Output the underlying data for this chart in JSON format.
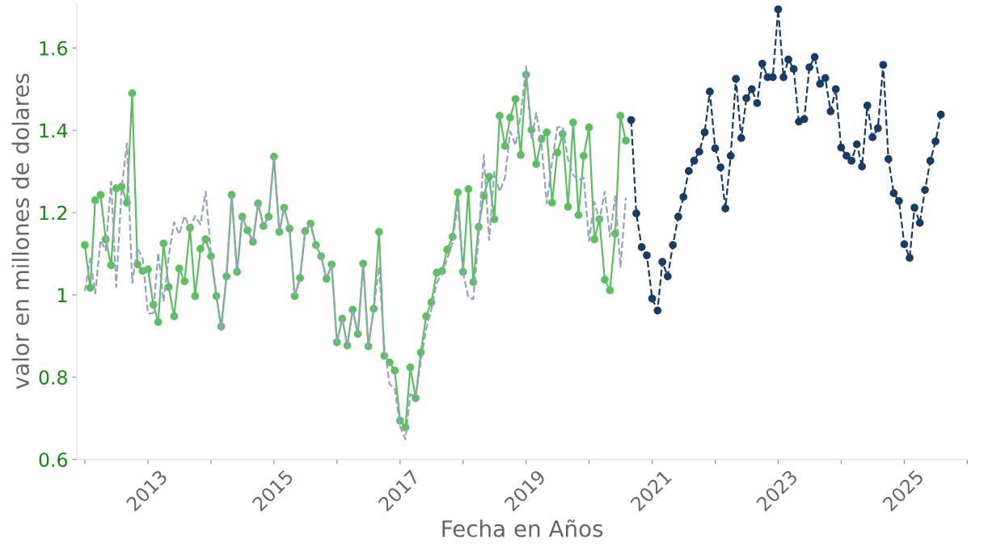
{
  "chart_data": {
    "type": "line",
    "xlabel": "Fecha en Años",
    "ylabel": "valor en millones de dolares",
    "xlim": [
      "2011-11-15",
      "2026-01-01"
    ],
    "xticks": [
      {
        "value": "2012-01-01",
        "label": null
      },
      {
        "value": "2013-01-01",
        "label": "2013"
      },
      {
        "value": "2014-01-01",
        "label": null
      },
      {
        "value": "2015-01-01",
        "label": "2015"
      },
      {
        "value": "2016-01-01",
        "label": null
      },
      {
        "value": "2017-01-01",
        "label": "2017"
      },
      {
        "value": "2018-01-01",
        "label": null
      },
      {
        "value": "2019-01-01",
        "label": "2019"
      },
      {
        "value": "2020-01-01",
        "label": null
      },
      {
        "value": "2021-01-01",
        "label": "2021"
      },
      {
        "value": "2022-01-01",
        "label": null
      },
      {
        "value": "2023-01-01",
        "label": "2023"
      },
      {
        "value": "2024-01-01",
        "label": null
      },
      {
        "value": "2025-01-01",
        "label": "2025"
      },
      {
        "value": "2026-01-01",
        "label": null
      }
    ],
    "ylim": [
      0.6,
      1.71
    ],
    "yticks": [
      0.6,
      0.8,
      1,
      1.2,
      1.4,
      1.6
    ],
    "series": [
      {
        "color": "#5cbf60",
        "marker": "circle",
        "line_style": "solid",
        "x": [
          "2012-01",
          "2012-02",
          "2012-03",
          "2012-04",
          "2012-05",
          "2012-06",
          "2012-07",
          "2012-08",
          "2012-09",
          "2012-10",
          "2012-11",
          "2012-12",
          "2013-01",
          "2013-02",
          "2013-03",
          "2013-04",
          "2013-05",
          "2013-06",
          "2013-07",
          "2013-08",
          "2013-09",
          "2013-10",
          "2013-11",
          "2013-12",
          "2014-01",
          "2014-02",
          "2014-03",
          "2014-04",
          "2014-05",
          "2014-06",
          "2014-07",
          "2014-08",
          "2014-09",
          "2014-10",
          "2014-11",
          "2014-12",
          "2015-01",
          "2015-02",
          "2015-03",
          "2015-04",
          "2015-05",
          "2015-06",
          "2015-07",
          "2015-08",
          "2015-09",
          "2015-10",
          "2015-11",
          "2015-12",
          "2016-01",
          "2016-02",
          "2016-03",
          "2016-04",
          "2016-05",
          "2016-06",
          "2016-07",
          "2016-08",
          "2016-09",
          "2016-10",
          "2016-11",
          "2016-12",
          "2017-01",
          "2017-02",
          "2017-03",
          "2017-04",
          "2017-05",
          "2017-06",
          "2017-07",
          "2017-08",
          "2017-09",
          "2017-10",
          "2017-11",
          "2017-12",
          "2018-01",
          "2018-02",
          "2018-03",
          "2018-04",
          "2018-05",
          "2018-06",
          "2018-07",
          "2018-08",
          "2018-09",
          "2018-10",
          "2018-11",
          "2018-12",
          "2019-01",
          "2019-02",
          "2019-03",
          "2019-04",
          "2019-05",
          "2019-06",
          "2019-07",
          "2019-08",
          "2019-09",
          "2019-10",
          "2019-11",
          "2019-12",
          "2020-01",
          "2020-02",
          "2020-03",
          "2020-04",
          "2020-05",
          "2020-06",
          "2020-07",
          "2020-08"
        ],
        "values": [
          1.121,
          1.017,
          1.23,
          1.243,
          1.135,
          1.072,
          1.259,
          1.263,
          1.224,
          1.49,
          1.074,
          1.058,
          1.062,
          0.976,
          0.934,
          1.125,
          1.019,
          0.948,
          1.064,
          1.033,
          1.163,
          0.997,
          1.112,
          1.135,
          1.094,
          0.997,
          0.923,
          1.045,
          1.243,
          1.056,
          1.19,
          1.157,
          1.129,
          1.222,
          1.167,
          1.19,
          1.336,
          1.153,
          1.212,
          1.161,
          0.997,
          1.041,
          1.155,
          1.173,
          1.121,
          1.094,
          1.039,
          1.074,
          0.885,
          0.942,
          0.877,
          0.964,
          0.905,
          1.076,
          0.875,
          0.966,
          1.153,
          0.852,
          0.836,
          0.816,
          0.694,
          0.678,
          0.824,
          0.749,
          0.86,
          0.948,
          0.982,
          1.054,
          1.058,
          1.11,
          1.141,
          1.249,
          1.056,
          1.257,
          1.031,
          1.165,
          1.241,
          1.287,
          1.184,
          1.435,
          1.362,
          1.431,
          1.476,
          1.34,
          1.535,
          1.401,
          1.318,
          1.379,
          1.395,
          1.224,
          1.346,
          1.391,
          1.214,
          1.419,
          1.194,
          1.338,
          1.407,
          1.135,
          1.184,
          1.037,
          1.011,
          1.149,
          1.435,
          1.375
        ]
      },
      {
        "color": "#95a3bb",
        "marker": "none",
        "line_style": "dashed",
        "x": [
          "2012-01",
          "2012-02",
          "2012-03",
          "2012-04",
          "2012-05",
          "2012-06",
          "2012-07",
          "2012-08",
          "2012-09",
          "2012-10",
          "2012-11",
          "2012-12",
          "2013-01",
          "2013-02",
          "2013-03",
          "2013-04",
          "2013-05",
          "2013-06",
          "2013-07",
          "2013-08",
          "2013-09",
          "2013-10",
          "2013-11",
          "2013-12",
          "2014-01",
          "2014-02",
          "2014-03",
          "2014-04",
          "2014-05",
          "2014-06",
          "2014-07",
          "2014-08",
          "2014-09",
          "2014-10",
          "2014-11",
          "2014-12",
          "2015-01",
          "2015-02",
          "2015-03",
          "2015-04",
          "2015-05",
          "2015-06",
          "2015-07",
          "2015-08",
          "2015-09",
          "2015-10",
          "2015-11",
          "2015-12",
          "2016-01",
          "2016-02",
          "2016-03",
          "2016-04",
          "2016-05",
          "2016-06",
          "2016-07",
          "2016-08",
          "2016-09",
          "2016-10",
          "2016-11",
          "2016-12",
          "2017-01",
          "2017-02",
          "2017-03",
          "2017-04",
          "2017-05",
          "2017-06",
          "2017-07",
          "2017-08",
          "2017-09",
          "2017-10",
          "2017-11",
          "2017-12",
          "2018-01",
          "2018-02",
          "2018-03",
          "2018-04",
          "2018-05",
          "2018-06",
          "2018-07",
          "2018-08",
          "2018-09",
          "2018-10",
          "2018-11",
          "2018-12",
          "2019-01",
          "2019-02",
          "2019-03",
          "2019-04",
          "2019-05",
          "2019-06",
          "2019-07",
          "2019-08",
          "2019-09",
          "2019-10",
          "2019-11",
          "2019-12",
          "2020-01",
          "2020-02",
          "2020-03",
          "2020-04",
          "2020-05",
          "2020-06",
          "2020-07",
          "2020-08"
        ],
        "values": [
          1.009,
          1.088,
          1.003,
          1.133,
          1.108,
          1.275,
          1.019,
          1.259,
          1.368,
          1.029,
          1.114,
          1.088,
          0.954,
          0.956,
          1.102,
          0.984,
          1.094,
          1.177,
          1.147,
          1.192,
          1.163,
          1.192,
          1.171,
          1.251,
          1.102,
          1.003,
          0.911,
          1.049,
          1.241,
          1.056,
          1.19,
          1.157,
          1.129,
          1.222,
          1.167,
          1.19,
          1.336,
          1.153,
          1.212,
          1.161,
          0.997,
          1.041,
          1.155,
          1.173,
          1.121,
          1.094,
          1.039,
          1.074,
          0.885,
          0.942,
          0.877,
          0.964,
          0.905,
          1.076,
          0.875,
          0.966,
          1.068,
          0.877,
          0.783,
          0.773,
          0.68,
          0.649,
          0.759,
          0.753,
          0.838,
          0.917,
          0.964,
          1.029,
          1.053,
          1.088,
          1.127,
          1.222,
          1.054,
          0.993,
          0.99,
          1.141,
          1.34,
          1.133,
          1.299,
          1.251,
          1.285,
          1.397,
          1.364,
          1.437,
          1.555,
          1.377,
          1.442,
          1.364,
          1.222,
          1.324,
          1.407,
          1.409,
          1.33,
          1.291,
          1.279,
          1.285,
          1.131,
          1.226,
          1.181,
          1.251,
          1.141,
          1.24,
          1.068,
          1.236
        ]
      },
      {
        "color": "#173c66",
        "marker": "circle",
        "line_style": "dashed",
        "x": [
          "2020-09",
          "2020-10",
          "2020-11",
          "2020-12",
          "2021-01",
          "2021-02",
          "2021-03",
          "2021-04",
          "2021-05",
          "2021-06",
          "2021-07",
          "2021-08",
          "2021-09",
          "2021-10",
          "2021-11",
          "2021-12",
          "2022-01",
          "2022-02",
          "2022-03",
          "2022-04",
          "2022-05",
          "2022-06",
          "2022-07",
          "2022-08",
          "2022-09",
          "2022-10",
          "2022-11",
          "2022-12",
          "2023-01",
          "2023-02",
          "2023-03",
          "2023-04",
          "2023-05",
          "2023-06",
          "2023-07",
          "2023-08",
          "2023-09",
          "2023-10",
          "2023-11",
          "2023-12",
          "2024-01",
          "2024-02",
          "2024-03",
          "2024-04",
          "2024-05",
          "2024-06",
          "2024-07",
          "2024-08",
          "2024-09",
          "2024-10",
          "2024-11",
          "2024-12",
          "2025-01",
          "2025-02",
          "2025-03",
          "2025-04",
          "2025-05",
          "2025-06",
          "2025-07",
          "2025-08"
        ],
        "values": [
          1.425,
          1.198,
          1.116,
          1.096,
          0.991,
          0.962,
          1.08,
          1.045,
          1.121,
          1.19,
          1.238,
          1.301,
          1.326,
          1.348,
          1.395,
          1.494,
          1.356,
          1.31,
          1.21,
          1.338,
          1.525,
          1.381,
          1.478,
          1.5,
          1.466,
          1.562,
          1.529,
          1.529,
          1.694,
          1.529,
          1.572,
          1.549,
          1.421,
          1.427,
          1.553,
          1.578,
          1.513,
          1.527,
          1.446,
          1.5,
          1.358,
          1.338,
          1.326,
          1.366,
          1.312,
          1.46,
          1.383,
          1.405,
          1.559,
          1.33,
          1.247,
          1.228,
          1.123,
          1.09,
          1.212,
          1.175,
          1.255,
          1.326,
          1.373,
          1.438
        ]
      }
    ]
  }
}
